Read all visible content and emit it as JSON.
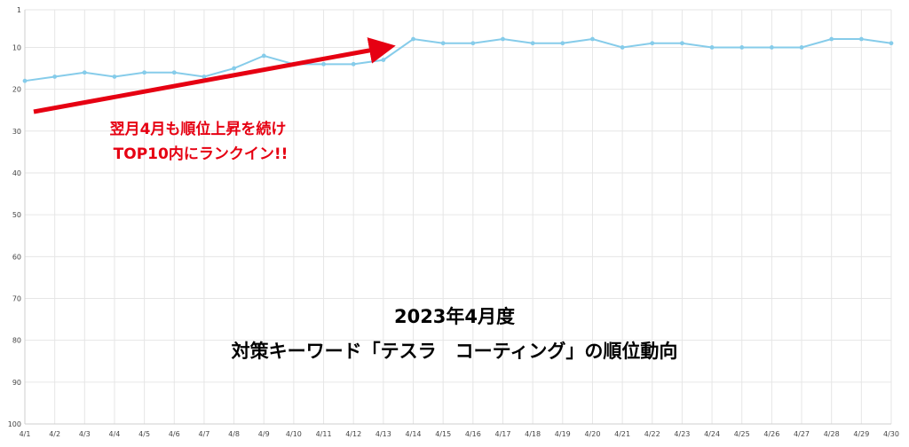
{
  "chart_data": {
    "type": "line",
    "title_lines": [
      "2023年4月度",
      "対策キーワード「テスラ　コーティング」の順位動向"
    ],
    "xlabel": "",
    "ylabel": "",
    "categories": [
      "4/1",
      "4/2",
      "4/3",
      "4/4",
      "4/5",
      "4/6",
      "4/7",
      "4/8",
      "4/9",
      "4/10",
      "4/11",
      "4/12",
      "4/13",
      "4/14",
      "4/15",
      "4/16",
      "4/17",
      "4/18",
      "4/19",
      "4/20",
      "4/21",
      "4/22",
      "4/23",
      "4/24",
      "4/25",
      "4/26",
      "4/27",
      "4/28",
      "4/29",
      "4/30"
    ],
    "series": [
      {
        "values": [
          18,
          17,
          16,
          17,
          16,
          16,
          17,
          15,
          12,
          14,
          14,
          14,
          13,
          8,
          9,
          9,
          8,
          9,
          9,
          8,
          10,
          9,
          9,
          10,
          10,
          10,
          10,
          8,
          8,
          9
        ]
      }
    ],
    "y_ticks": [
      1,
      10,
      20,
      30,
      40,
      50,
      60,
      70,
      80,
      90,
      100
    ],
    "ylim": [
      1,
      100
    ],
    "y_inverted": true,
    "grid": true,
    "colors": {
      "line": "#86ccea",
      "annotation": "#e60012",
      "grid": "#e6e6e6"
    },
    "annotation": {
      "lines": [
        "翌月4月も順位上昇を続け",
        "TOP10内にランクイン!!"
      ]
    }
  }
}
